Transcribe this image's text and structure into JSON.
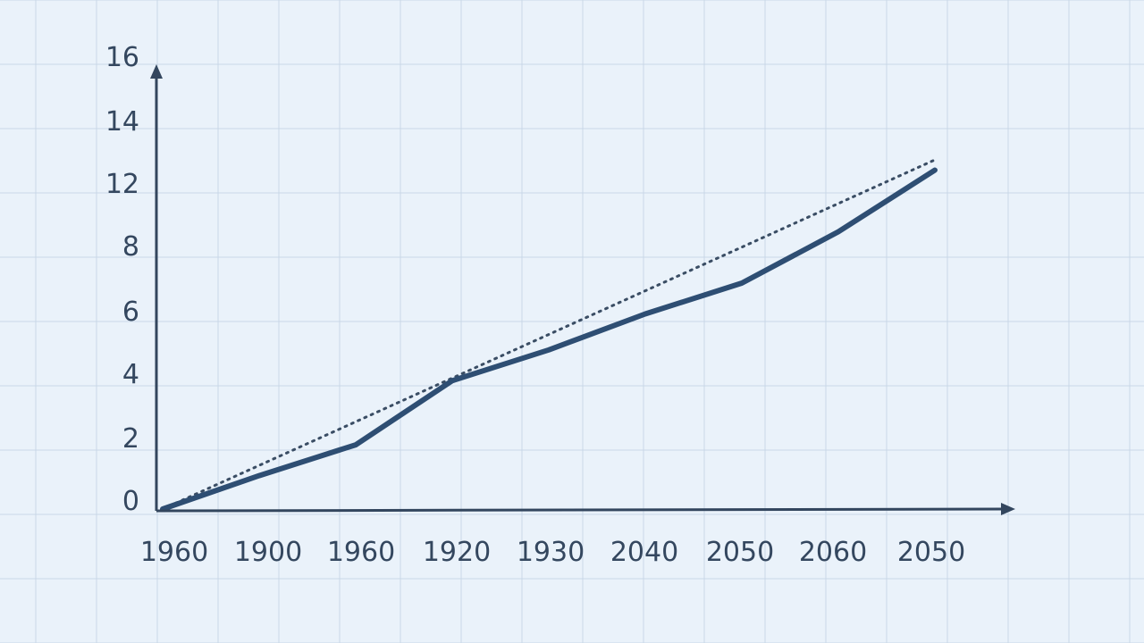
{
  "chart_data": {
    "type": "line",
    "title": "",
    "xlabel": "",
    "ylabel": "",
    "grid": true,
    "x_tick_labels": [
      "1960",
      "1900",
      "1960",
      "1920",
      "1930",
      "2040",
      "2050",
      "2060",
      "2050"
    ],
    "y_tick_labels": [
      "0",
      "2",
      "4",
      "6",
      "8",
      "12",
      "14",
      "16"
    ],
    "ylim": [
      0,
      16
    ],
    "series": [
      {
        "style": "solid",
        "x": [
          0,
          1,
          2,
          3,
          4,
          5,
          6,
          7,
          8
        ],
        "y": [
          0,
          1.3,
          2.5,
          5.0,
          6.2,
          7.6,
          8.8,
          10.8,
          13.2
        ]
      },
      {
        "style": "dotted",
        "x": [
          0,
          8
        ],
        "y": [
          0,
          13.6
        ]
      }
    ],
    "colors": {
      "background": "#eaf2fa",
      "grid": "#c9d8e8",
      "axis": "#33465e",
      "line": "#2e4e73",
      "trend": "#3a4d64"
    }
  }
}
